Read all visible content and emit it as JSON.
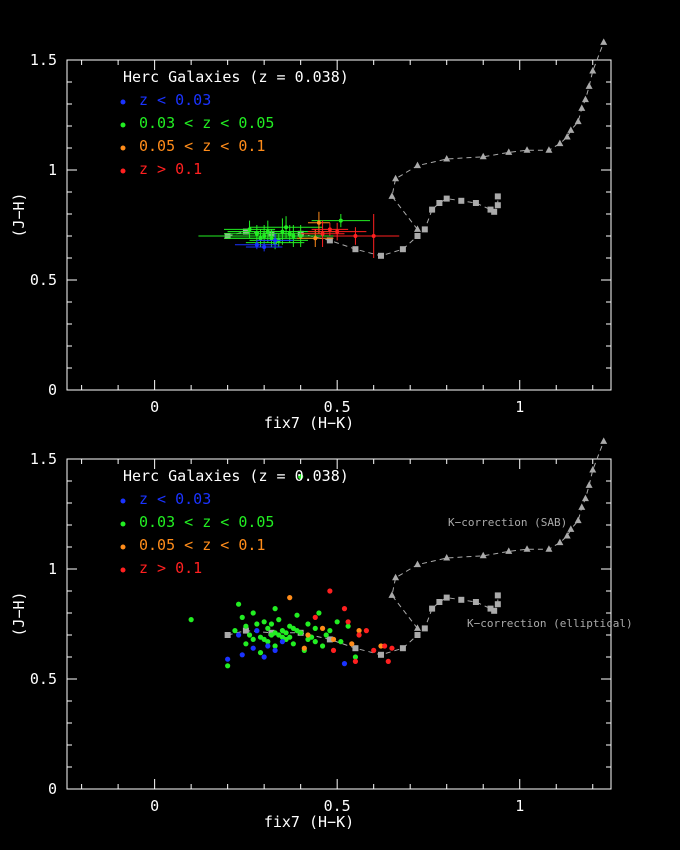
{
  "colors": {
    "background": "#000000",
    "axes": "#ffffff",
    "z_lt_003": "#1a33ff",
    "z_003_005": "#22ee22",
    "z_005_01": "#ff8c1a",
    "z_gt_01": "#ff2020",
    "kcorr": "#aaaaaa"
  },
  "chart_data": [
    {
      "type": "scatter",
      "variant": "error-bars",
      "xlabel": "fix7 (H−K)",
      "ylabel": "(J−H)",
      "xlim": [
        -0.24,
        1.25
      ],
      "ylim": [
        0,
        1.5
      ],
      "x_ticks": [
        "0",
        "0.5",
        "1"
      ],
      "y_ticks": [
        "0",
        "0.5",
        "1",
        "1.5"
      ],
      "legend": {
        "title": "Herc Galaxies (z = 0.038)",
        "items": [
          "z < 0.03",
          "0.03 < z < 0.05",
          "0.05 < z < 0.1",
          "z > 0.1"
        ],
        "position": "top-left"
      },
      "series": [
        {
          "name": "z < 0.03",
          "color_key": "z_lt_003",
          "points": [
            [
              0.28,
              0.66,
              0.06,
              0.02
            ],
            [
              0.3,
              0.65,
              0.05,
              0.02
            ],
            [
              0.33,
              0.68,
              0.05,
              0.03
            ]
          ]
        },
        {
          "name": "0.03 < z < 0.05",
          "color_key": "z_003_005",
          "points": [
            [
              0.3,
              0.7,
              0.18,
              0.05
            ],
            [
              0.35,
              0.72,
              0.15,
              0.06
            ],
            [
              0.32,
              0.69,
              0.12,
              0.04
            ],
            [
              0.36,
              0.74,
              0.1,
              0.05
            ],
            [
              0.28,
              0.71,
              0.09,
              0.04
            ],
            [
              0.33,
              0.67,
              0.08,
              0.03
            ],
            [
              0.38,
              0.7,
              0.1,
              0.05
            ],
            [
              0.26,
              0.73,
              0.07,
              0.04
            ],
            [
              0.31,
              0.72,
              0.11,
              0.05
            ],
            [
              0.34,
              0.68,
              0.08,
              0.03
            ],
            [
              0.37,
              0.71,
              0.09,
              0.04
            ],
            [
              0.29,
              0.69,
              0.1,
              0.04
            ],
            [
              0.4,
              0.7,
              0.1,
              0.05
            ],
            [
              0.51,
              0.77,
              0.08,
              0.03
            ]
          ]
        },
        {
          "name": "0.05 < z < 0.1",
          "color_key": "z_005_01",
          "points": [
            [
              0.45,
              0.76,
              0.03,
              0.05
            ],
            [
              0.44,
              0.69,
              0.05,
              0.04
            ]
          ]
        },
        {
          "name": "z > 0.1",
          "color_key": "z_gt_01",
          "points": [
            [
              0.46,
              0.71,
              0.06,
              0.06
            ],
            [
              0.5,
              0.72,
              0.08,
              0.04
            ],
            [
              0.55,
              0.7,
              0.06,
              0.04
            ],
            [
              0.6,
              0.7,
              0.07,
              0.1
            ],
            [
              0.48,
              0.73,
              0.05,
              0.03
            ]
          ]
        }
      ],
      "kcorrection_sab": {
        "x": [
          0.72,
          0.65,
          0.66,
          0.72,
          0.8,
          0.9,
          0.97,
          1.02,
          1.08,
          1.11,
          1.13,
          1.14,
          1.16,
          1.17,
          1.18,
          1.19,
          1.2,
          1.23
        ],
        "y": [
          0.73,
          0.88,
          0.96,
          1.02,
          1.05,
          1.06,
          1.08,
          1.09,
          1.09,
          1.12,
          1.15,
          1.18,
          1.22,
          1.28,
          1.32,
          1.38,
          1.45,
          1.58
        ]
      },
      "kcorrection_elliptical": {
        "x": [
          0.2,
          0.25,
          0.32,
          0.4,
          0.48,
          0.55,
          0.62,
          0.68,
          0.72,
          0.74,
          0.76,
          0.78,
          0.8,
          0.84,
          0.88,
          0.92,
          0.93,
          0.94,
          0.94
        ],
        "y": [
          0.7,
          0.72,
          0.71,
          0.71,
          0.68,
          0.64,
          0.61,
          0.64,
          0.7,
          0.73,
          0.82,
          0.85,
          0.87,
          0.86,
          0.85,
          0.82,
          0.81,
          0.84,
          0.88
        ]
      }
    },
    {
      "type": "scatter",
      "xlabel": "fix7 (H−K)",
      "ylabel": "(J−H)",
      "xlim": [
        -0.24,
        1.25
      ],
      "ylim": [
        0,
        1.5
      ],
      "x_ticks": [
        "0",
        "0.5",
        "1"
      ],
      "y_ticks": [
        "0",
        "0.5",
        "1",
        "1.5"
      ],
      "legend": {
        "title": "Herc Galaxies (z = 0.038)",
        "items": [
          "z < 0.03",
          "0.03 < z < 0.05",
          "0.05 < z < 0.1",
          "z > 0.1"
        ],
        "position": "top-left"
      },
      "annotations": [
        "K−correction (SAB)",
        "K−correction (elliptical)"
      ],
      "series": [
        {
          "name": "z < 0.03",
          "color_key": "z_lt_003",
          "points": [
            [
              0.2,
              0.59
            ],
            [
              0.24,
              0.61
            ],
            [
              0.27,
              0.64
            ],
            [
              0.3,
              0.6
            ],
            [
              0.33,
              0.63
            ],
            [
              0.52,
              0.57
            ],
            [
              0.23,
              0.7
            ],
            [
              0.35,
              0.67
            ],
            [
              0.28,
              0.72
            ],
            [
              0.31,
              0.65
            ]
          ]
        },
        {
          "name": "0.03 < z < 0.05",
          "color_key": "z_003_005",
          "points": [
            [
              0.1,
              0.77
            ],
            [
              0.2,
              0.56
            ],
            [
              0.22,
              0.72
            ],
            [
              0.24,
              0.78
            ],
            [
              0.25,
              0.66
            ],
            [
              0.26,
              0.7
            ],
            [
              0.27,
              0.8
            ],
            [
              0.28,
              0.75
            ],
            [
              0.29,
              0.62
            ],
            [
              0.3,
              0.68
            ],
            [
              0.31,
              0.73
            ],
            [
              0.32,
              0.7
            ],
            [
              0.33,
              0.65
            ],
            [
              0.34,
              0.77
            ],
            [
              0.35,
              0.72
            ],
            [
              0.36,
              0.68
            ],
            [
              0.37,
              0.74
            ],
            [
              0.38,
              0.66
            ],
            [
              0.39,
              0.79
            ],
            [
              0.4,
              0.71
            ],
            [
              0.41,
              0.63
            ],
            [
              0.42,
              0.75
            ],
            [
              0.43,
              0.69
            ],
            [
              0.44,
              0.73
            ],
            [
              0.45,
              0.8
            ],
            [
              0.46,
              0.65
            ],
            [
              0.47,
              0.7
            ],
            [
              0.48,
              0.72
            ],
            [
              0.5,
              0.76
            ],
            [
              0.51,
              0.67
            ],
            [
              0.53,
              0.74
            ],
            [
              0.55,
              0.6
            ],
            [
              0.23,
              0.84
            ],
            [
              0.33,
              0.82
            ],
            [
              0.4,
              1.42
            ],
            [
              0.3,
              0.76
            ],
            [
              0.34,
              0.7
            ],
            [
              0.36,
              0.71
            ],
            [
              0.29,
              0.69
            ],
            [
              0.38,
              0.73
            ],
            [
              0.31,
              0.67
            ],
            [
              0.35,
              0.69
            ],
            [
              0.42,
              0.68
            ],
            [
              0.27,
              0.68
            ],
            [
              0.25,
              0.74
            ],
            [
              0.44,
              0.67
            ],
            [
              0.32,
              0.75
            ],
            [
              0.37,
              0.69
            ],
            [
              0.39,
              0.72
            ],
            [
              0.33,
              0.71
            ]
          ]
        },
        {
          "name": "0.05 < z < 0.1",
          "color_key": "z_005_01",
          "points": [
            [
              0.37,
              0.87
            ],
            [
              0.42,
              0.7
            ],
            [
              0.46,
              0.73
            ],
            [
              0.54,
              0.66
            ],
            [
              0.56,
              0.72
            ],
            [
              0.41,
              0.64
            ],
            [
              0.49,
              0.68
            ],
            [
              0.62,
              0.65
            ]
          ]
        },
        {
          "name": "z > 0.1",
          "color_key": "z_gt_01",
          "points": [
            [
              0.48,
              0.9
            ],
            [
              0.52,
              0.82
            ],
            [
              0.56,
              0.7
            ],
            [
              0.6,
              0.63
            ],
            [
              0.63,
              0.65
            ],
            [
              0.65,
              0.64
            ],
            [
              0.44,
              0.78
            ],
            [
              0.49,
              0.63
            ],
            [
              0.55,
              0.58
            ],
            [
              0.64,
              0.58
            ],
            [
              0.58,
              0.72
            ],
            [
              0.53,
              0.76
            ]
          ]
        }
      ],
      "kcorrection_sab": {
        "x": [
          0.72,
          0.65,
          0.66,
          0.72,
          0.8,
          0.9,
          0.97,
          1.02,
          1.08,
          1.11,
          1.13,
          1.14,
          1.16,
          1.17,
          1.18,
          1.19,
          1.2,
          1.23
        ],
        "y": [
          0.73,
          0.88,
          0.96,
          1.02,
          1.05,
          1.06,
          1.08,
          1.09,
          1.09,
          1.12,
          1.15,
          1.18,
          1.22,
          1.28,
          1.32,
          1.38,
          1.45,
          1.58
        ]
      },
      "kcorrection_elliptical": {
        "x": [
          0.2,
          0.25,
          0.32,
          0.4,
          0.48,
          0.55,
          0.62,
          0.68,
          0.72,
          0.74,
          0.76,
          0.78,
          0.8,
          0.84,
          0.88,
          0.92,
          0.93,
          0.94,
          0.94
        ],
        "y": [
          0.7,
          0.72,
          0.71,
          0.71,
          0.68,
          0.64,
          0.61,
          0.64,
          0.7,
          0.73,
          0.82,
          0.85,
          0.87,
          0.86,
          0.85,
          0.82,
          0.81,
          0.84,
          0.88
        ]
      }
    }
  ]
}
